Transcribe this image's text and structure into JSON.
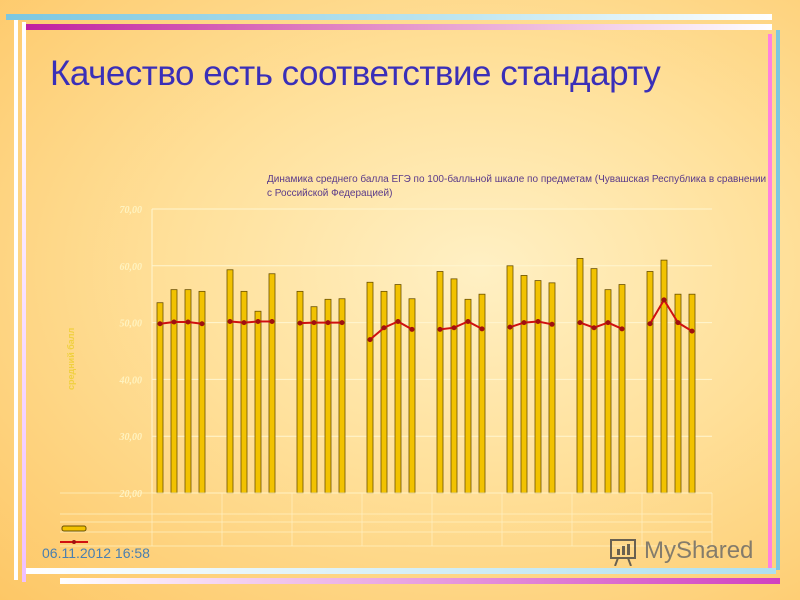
{
  "slide": {
    "title": "Качество есть соответствие стандарту",
    "date": "06.11.2012 16:58",
    "watermark": "MyShared"
  },
  "chart_data": {
    "type": "bar+line",
    "title": "Динамика среднего балла ЕГЭ по 100-балльной шкале по предметам (Чувашская Республика в сравнении с Российской Федерацией)",
    "ylabel": "средний балл",
    "ylim": [
      20,
      70
    ],
    "yticks": [
      "20,00",
      "30,00",
      "40,00",
      "50,00",
      "60,00",
      "70,00"
    ],
    "groups": 8,
    "bars_per_group": 4,
    "series": [
      {
        "type": "bar",
        "color": "#f2c200",
        "values": [
          [
            53.5,
            55.8,
            55.8,
            55.5
          ],
          [
            59.3,
            55.5,
            52.0,
            58.6
          ],
          [
            55.5,
            52.8,
            54.1,
            54.2
          ],
          [
            57.1,
            55.5,
            56.7,
            54.2
          ],
          [
            59.0,
            57.7,
            54.1,
            55.0
          ],
          [
            60.0,
            58.3,
            57.4,
            57.0
          ],
          [
            61.3,
            59.5,
            55.8,
            56.7
          ],
          [
            59.0,
            61.0,
            55.0,
            55.0
          ]
        ]
      },
      {
        "type": "line",
        "color": "#d01010",
        "values": [
          [
            49.8,
            50.1,
            50.1,
            49.8
          ],
          [
            50.2,
            50.0,
            50.2,
            50.2
          ],
          [
            49.9,
            50.0,
            50.0,
            50.0
          ],
          [
            47.0,
            49.1,
            50.2,
            48.8
          ],
          [
            48.8,
            49.1,
            50.2,
            48.9
          ],
          [
            49.2,
            50.0,
            50.2,
            49.7
          ],
          [
            50.0,
            49.1,
            50.0,
            48.9
          ],
          [
            49.8,
            54.0,
            50.0,
            48.5
          ]
        ]
      }
    ]
  }
}
